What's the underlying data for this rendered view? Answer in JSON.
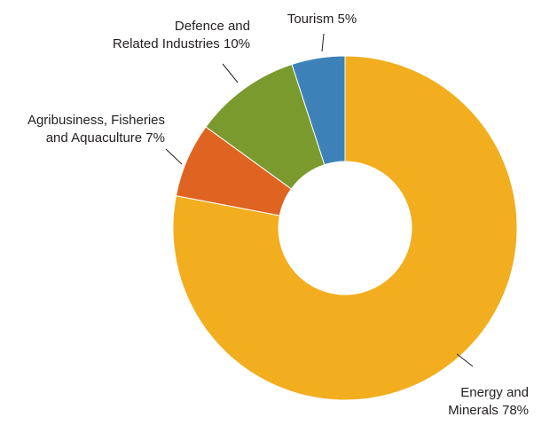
{
  "chart_data": {
    "type": "pie",
    "donut": true,
    "title": "",
    "legend": "none",
    "slices": [
      {
        "label_lines": [
          "Energy and",
          "Minerals 78%"
        ],
        "value": 78,
        "color": "#f2ae1f"
      },
      {
        "label_lines": [
          "Agribusiness, Fisheries",
          "and Aquaculture 7%"
        ],
        "value": 7,
        "color": "#e06421"
      },
      {
        "label_lines": [
          "Defence and",
          "Related Industries 10%"
        ],
        "value": 10,
        "color": "#7b9a2e"
      },
      {
        "label_lines": [
          "Tourism 5%"
        ],
        "value": 5,
        "color": "#3c82b8"
      }
    ]
  }
}
